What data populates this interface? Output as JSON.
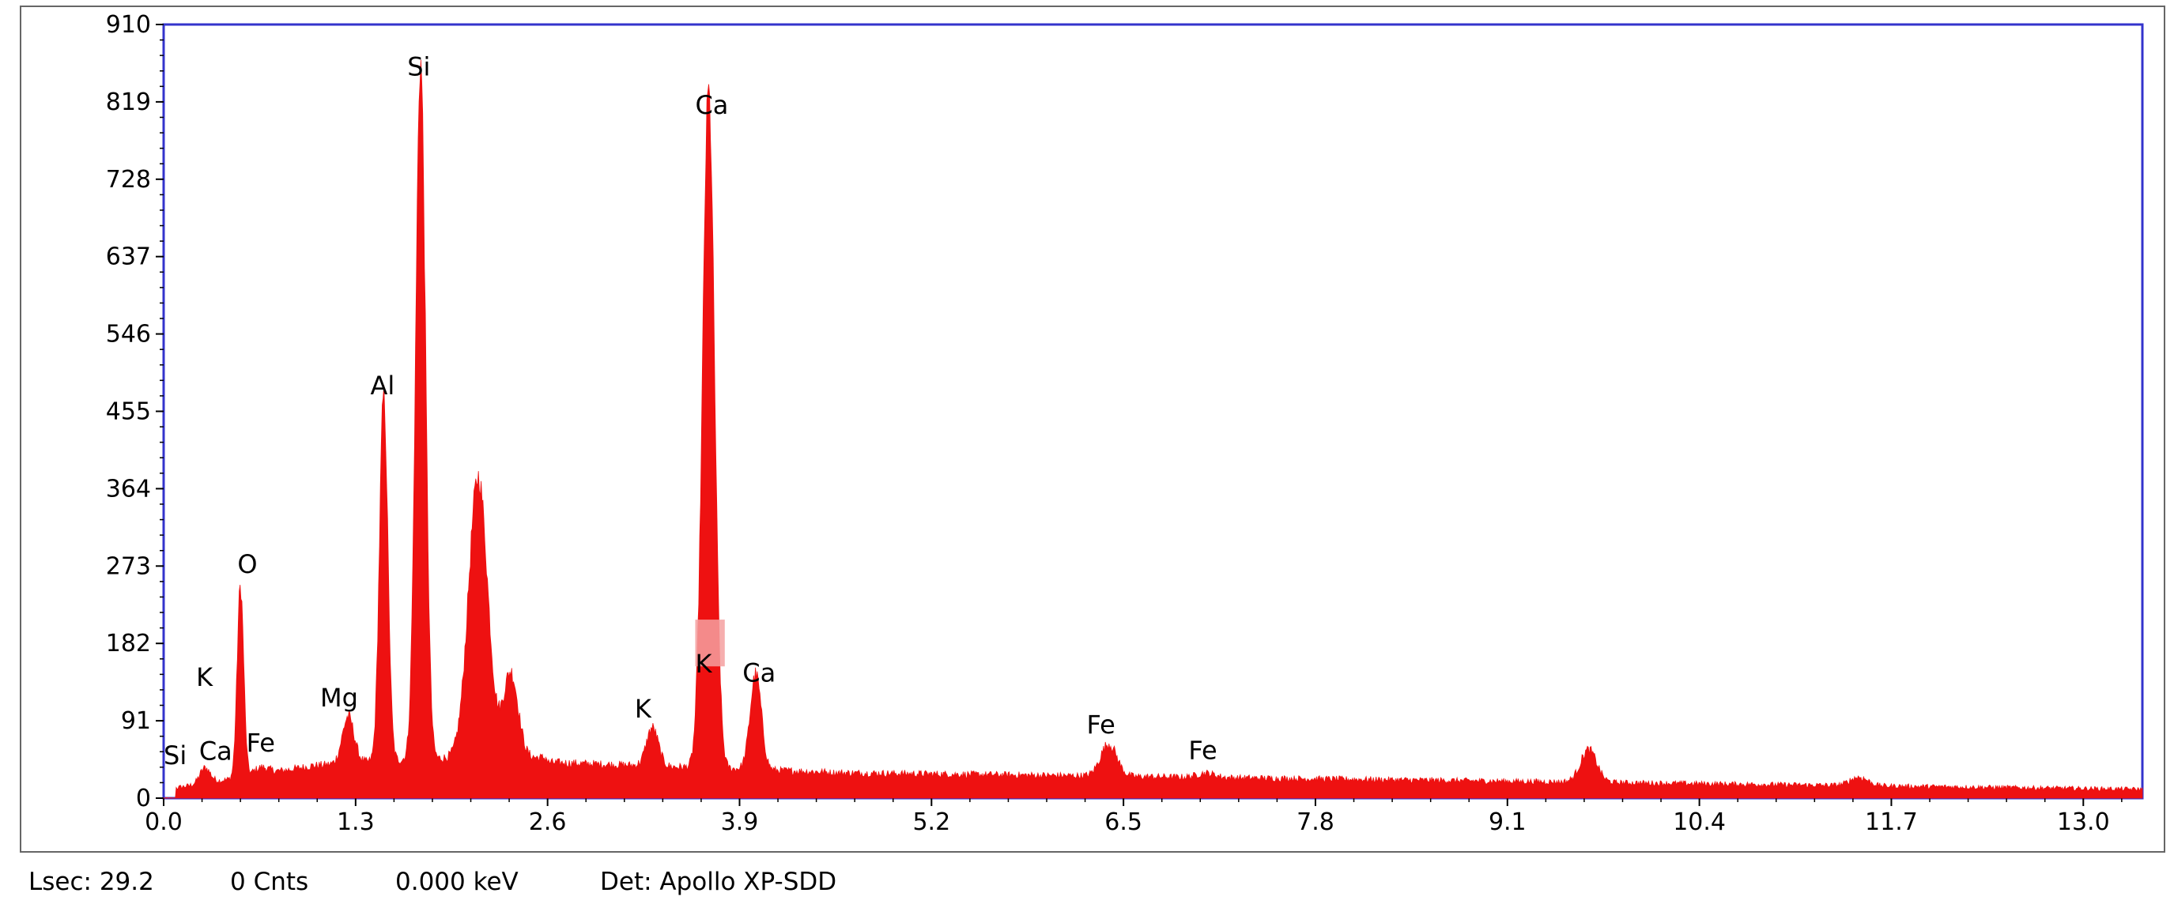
{
  "chart_data": {
    "type": "area",
    "title": "",
    "xlabel": "",
    "ylabel": "",
    "xlim": [
      0.0,
      13.4
    ],
    "ylim": [
      0,
      910
    ],
    "x_ticks": [
      "0.0",
      "1.3",
      "2.6",
      "3.9",
      "5.2",
      "6.5",
      "7.8",
      "9.1",
      "10.4",
      "11.7",
      "13.0"
    ],
    "y_ticks": [
      "0",
      "91",
      "182",
      "273",
      "364",
      "455",
      "546",
      "637",
      "728",
      "819",
      "910"
    ],
    "series_color": "#ee1111",
    "frame_color": "#3333cc",
    "peaks": [
      {
        "x": 0.28,
        "y": 18,
        "w": 0.035
      },
      {
        "x": 0.52,
        "y": 225,
        "w": 0.022
      },
      {
        "x": 0.66,
        "y": 8,
        "w": 0.05
      },
      {
        "x": 1.25,
        "y": 55,
        "w": 0.04
      },
      {
        "x": 1.49,
        "y": 430,
        "w": 0.028
      },
      {
        "x": 1.74,
        "y": 820,
        "w": 0.033
      },
      {
        "x": 2.13,
        "y": 330,
        "w": 0.065
      },
      {
        "x": 2.35,
        "y": 100,
        "w": 0.05
      },
      {
        "x": 3.31,
        "y": 45,
        "w": 0.04
      },
      {
        "x": 3.69,
        "y": 795,
        "w": 0.04
      },
      {
        "x": 4.01,
        "y": 112,
        "w": 0.038
      },
      {
        "x": 6.4,
        "y": 38,
        "w": 0.055
      },
      {
        "x": 7.06,
        "y": 5,
        "w": 0.06
      },
      {
        "x": 9.65,
        "y": 38,
        "w": 0.055
      },
      {
        "x": 11.48,
        "y": 10,
        "w": 0.06
      }
    ],
    "peak_labels": [
      {
        "text": "Si",
        "x": 0.0,
        "y": 40
      },
      {
        "text": "Ca",
        "x": 0.24,
        "y": 45
      },
      {
        "text": "K",
        "x": 0.22,
        "y": 132
      },
      {
        "text": "O",
        "x": 0.5,
        "y": 265
      },
      {
        "text": "Fe",
        "x": 0.56,
        "y": 55
      },
      {
        "text": "Mg",
        "x": 1.06,
        "y": 108
      },
      {
        "text": "Al",
        "x": 1.4,
        "y": 475
      },
      {
        "text": "Si",
        "x": 1.65,
        "y": 850
      },
      {
        "text": "Ca",
        "x": 3.6,
        "y": 805
      },
      {
        "text": "K",
        "x": 3.6,
        "y": 148
      },
      {
        "text": "Ca",
        "x": 3.92,
        "y": 137
      },
      {
        "text": "K",
        "x": 3.19,
        "y": 95
      },
      {
        "text": "Fe",
        "x": 6.25,
        "y": 76
      },
      {
        "text": "Fe",
        "x": 6.94,
        "y": 46
      }
    ],
    "highlight": {
      "x0": 3.6,
      "x1": 3.8,
      "y0": 155,
      "y1": 210,
      "color": "#f4a0a0"
    }
  },
  "status": {
    "lsec": "Lsec: 29.2",
    "cnts": "0 Cnts",
    "kev": "0.000 keV",
    "det": "Det: Apollo XP-SDD"
  }
}
